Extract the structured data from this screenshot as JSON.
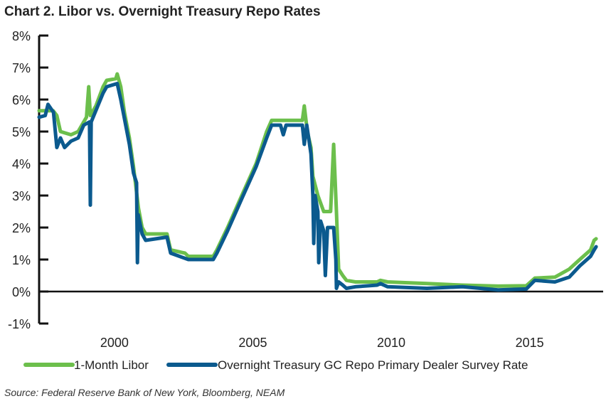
{
  "chart_data": {
    "type": "line",
    "title": "Chart 2. Libor vs. Overnight Treasury Repo Rates",
    "source": "Source: Federal Reserve Bank of New York, Bloomberg, NEAM",
    "xlim": [
      1997.28,
      2017.45
    ],
    "ylim": [
      -1,
      8
    ],
    "x_ticks": [
      2000,
      2005,
      2010,
      2015
    ],
    "x_tick_labels": [
      "2000",
      "2005",
      "2010",
      "2015"
    ],
    "y_ticks": [
      -1,
      0,
      1,
      2,
      3,
      4,
      5,
      6,
      7,
      8
    ],
    "y_tick_labels": [
      "-1%",
      "0%",
      "1%",
      "2%",
      "3%",
      "4%",
      "5%",
      "6%",
      "7%",
      "8%"
    ],
    "grid": false,
    "legend_placement": "bottom",
    "series": [
      {
        "name": "1-Month Libor",
        "color": "#6cbf4c",
        "points": [
          [
            1997.28,
            5.65
          ],
          [
            1997.79,
            5.65
          ],
          [
            1997.92,
            5.5
          ],
          [
            1998.05,
            5.0
          ],
          [
            1998.43,
            4.9
          ],
          [
            1998.69,
            5.0
          ],
          [
            1998.89,
            5.3
          ],
          [
            1998.99,
            5.45
          ],
          [
            1999.07,
            6.4
          ],
          [
            1999.13,
            5.5
          ],
          [
            1999.33,
            5.8
          ],
          [
            1999.59,
            6.4
          ],
          [
            1999.72,
            6.6
          ],
          [
            2000.05,
            6.65
          ],
          [
            2000.1,
            6.8
          ],
          [
            2000.23,
            6.4
          ],
          [
            2000.36,
            5.6
          ],
          [
            2000.54,
            4.8
          ],
          [
            2000.69,
            3.9
          ],
          [
            2000.87,
            2.6
          ],
          [
            2001.0,
            2.0
          ],
          [
            2001.13,
            1.8
          ],
          [
            2001.9,
            1.8
          ],
          [
            2002.03,
            1.3
          ],
          [
            2002.55,
            1.2
          ],
          [
            2002.67,
            1.1
          ],
          [
            2003.57,
            1.1
          ],
          [
            2003.7,
            1.3
          ],
          [
            2004.09,
            2.0
          ],
          [
            2004.6,
            3.0
          ],
          [
            2005.12,
            4.0
          ],
          [
            2005.5,
            5.0
          ],
          [
            2005.68,
            5.35
          ],
          [
            2006.79,
            5.35
          ],
          [
            2006.86,
            5.8
          ],
          [
            2006.97,
            5.0
          ],
          [
            2007.1,
            4.5
          ],
          [
            2007.17,
            3.6
          ],
          [
            2007.35,
            3.0
          ],
          [
            2007.56,
            2.5
          ],
          [
            2007.81,
            2.5
          ],
          [
            2007.92,
            4.6
          ],
          [
            2008.02,
            2.5
          ],
          [
            2008.1,
            0.7
          ],
          [
            2008.25,
            0.5
          ],
          [
            2008.38,
            0.35
          ],
          [
            2008.71,
            0.3
          ],
          [
            2009.49,
            0.3
          ],
          [
            2009.61,
            0.35
          ],
          [
            2009.87,
            0.3
          ],
          [
            2011.29,
            0.25
          ],
          [
            2012.57,
            0.2
          ],
          [
            2013.86,
            0.17
          ],
          [
            2014.88,
            0.18
          ],
          [
            2015.19,
            0.42
          ],
          [
            2015.91,
            0.45
          ],
          [
            2016.43,
            0.7
          ],
          [
            2016.81,
            1.0
          ],
          [
            2017.2,
            1.3
          ],
          [
            2017.33,
            1.6
          ],
          [
            2017.4,
            1.65
          ]
        ]
      },
      {
        "name": "Overnight Treasury GC Repo Primary Dealer Survey Rate",
        "color": "#0b5a8e",
        "points": [
          [
            1997.28,
            5.45
          ],
          [
            1997.5,
            5.5
          ],
          [
            1997.6,
            5.85
          ],
          [
            1997.8,
            5.6
          ],
          [
            1997.92,
            4.5
          ],
          [
            1998.05,
            4.8
          ],
          [
            1998.2,
            4.5
          ],
          [
            1998.43,
            4.7
          ],
          [
            1998.69,
            4.8
          ],
          [
            1998.89,
            5.2
          ],
          [
            1999.1,
            5.3
          ],
          [
            1999.13,
            2.7
          ],
          [
            1999.16,
            5.3
          ],
          [
            1999.59,
            6.2
          ],
          [
            1999.72,
            6.4
          ],
          [
            2000.1,
            6.5
          ],
          [
            2000.23,
            6.0
          ],
          [
            2000.54,
            4.6
          ],
          [
            2000.69,
            3.7
          ],
          [
            2000.8,
            3.4
          ],
          [
            2000.83,
            0.9
          ],
          [
            2000.86,
            2.4
          ],
          [
            2001.0,
            1.8
          ],
          [
            2001.13,
            1.6
          ],
          [
            2001.9,
            1.7
          ],
          [
            2002.03,
            1.2
          ],
          [
            2002.67,
            1.0
          ],
          [
            2003.57,
            1.0
          ],
          [
            2003.7,
            1.2
          ],
          [
            2004.09,
            1.9
          ],
          [
            2004.6,
            2.9
          ],
          [
            2005.12,
            3.9
          ],
          [
            2005.5,
            4.8
          ],
          [
            2005.68,
            5.2
          ],
          [
            2006.0,
            5.2
          ],
          [
            2006.1,
            4.9
          ],
          [
            2006.2,
            5.2
          ],
          [
            2006.79,
            5.2
          ],
          [
            2006.86,
            4.6
          ],
          [
            2006.95,
            5.2
          ],
          [
            2007.1,
            4.3
          ],
          [
            2007.17,
            3.0
          ],
          [
            2007.2,
            1.5
          ],
          [
            2007.25,
            3.0
          ],
          [
            2007.35,
            2.5
          ],
          [
            2007.38,
            0.9
          ],
          [
            2007.45,
            2.2
          ],
          [
            2007.56,
            1.9
          ],
          [
            2007.62,
            0.5
          ],
          [
            2007.7,
            2.0
          ],
          [
            2007.92,
            2.0
          ],
          [
            2008.0,
            1.0
          ],
          [
            2008.02,
            0.1
          ],
          [
            2008.1,
            0.3
          ],
          [
            2008.25,
            0.2
          ],
          [
            2008.38,
            0.1
          ],
          [
            2008.71,
            0.15
          ],
          [
            2009.49,
            0.2
          ],
          [
            2009.61,
            0.25
          ],
          [
            2009.87,
            0.15
          ],
          [
            2011.29,
            0.1
          ],
          [
            2012.57,
            0.15
          ],
          [
            2013.86,
            0.05
          ],
          [
            2014.88,
            0.08
          ],
          [
            2015.19,
            0.35
          ],
          [
            2015.91,
            0.3
          ],
          [
            2016.43,
            0.45
          ],
          [
            2016.81,
            0.8
          ],
          [
            2017.2,
            1.1
          ],
          [
            2017.33,
            1.3
          ],
          [
            2017.4,
            1.4
          ]
        ]
      }
    ]
  }
}
